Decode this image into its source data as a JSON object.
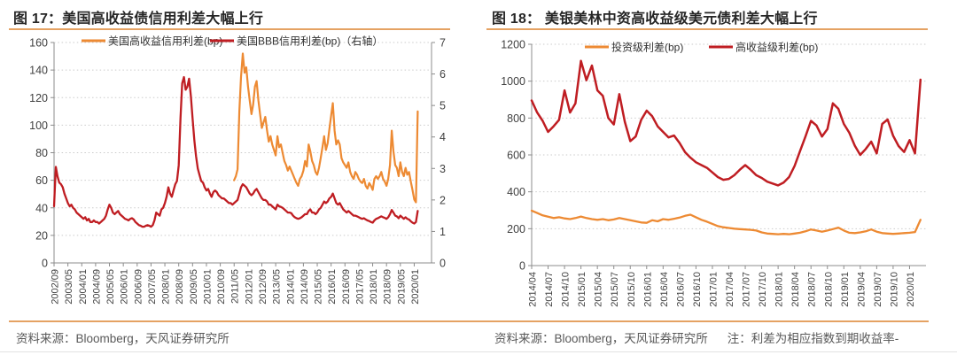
{
  "page": {
    "background": "#ffffff",
    "accent_rule_color": "#e5a263"
  },
  "figures": [
    {
      "title": "图 17：美国高收益债信用利差大幅上行",
      "source": "资料来源：Bloomberg，天风证券研究所",
      "note": ""
    },
    {
      "title": "图 18： 美银美林中资高收益级美元债利差大幅上行",
      "source": "资料来源：Bloomberg，天风证券研究所",
      "note": "注：利差为相应指数到期收益率-"
    }
  ],
  "chart_data": [
    {
      "type": "line",
      "title": "美国高收益债信用利差大幅上行",
      "legend_position": "top",
      "grid": "dotted-horizontal",
      "x_start": "2002/09",
      "x_tick_interval_months": 8,
      "x_total_months": 218,
      "x_tick_labels": [
        "2002/09",
        "2003/05",
        "2004/01",
        "2004/09",
        "2005/05",
        "2006/01",
        "2006/09",
        "2007/05",
        "2008/01",
        "2008/09",
        "2009/05",
        "2010/01",
        "2010/09",
        "2011/05",
        "2012/01",
        "2012/09",
        "2013/05",
        "2014/01",
        "2014/09",
        "2015/05",
        "2016/01",
        "2016/09",
        "2017/05",
        "2018/01",
        "2018/09",
        "2019/05",
        "2020/01"
      ],
      "y_axis_left": {
        "min": 0,
        "max": 160,
        "step": 20
      },
      "y_axis_right": {
        "min": 0,
        "max": 7,
        "step": 1
      },
      "series": [
        {
          "name": "美国高收益信用利差(bp)",
          "color": "#ed8a33",
          "axis": "left",
          "start_month_index": 104,
          "values": [
            60,
            63,
            68,
            110,
            135,
            152,
            138,
            142,
            128,
            118,
            108,
            115,
            128,
            132,
            118,
            108,
            98,
            102,
            106,
            96,
            88,
            92,
            86,
            82,
            78,
            92,
            84,
            86,
            80,
            74,
            71,
            67,
            70,
            67,
            64,
            61,
            58,
            56,
            61,
            63,
            67,
            74,
            70,
            86,
            81,
            74,
            71,
            66,
            64,
            69,
            76,
            84,
            92,
            82,
            87,
            97,
            107,
            116,
            96,
            86,
            89,
            86,
            76,
            73,
            71,
            69,
            73,
            66,
            63,
            61,
            66,
            64,
            61,
            59,
            58,
            61,
            56,
            54,
            58,
            56,
            53,
            61,
            63,
            61,
            63,
            66,
            61,
            59,
            56,
            61,
            71,
            96,
            81,
            71,
            69,
            63,
            73,
            66,
            63,
            69,
            64,
            66,
            59,
            53,
            46,
            44,
            110
          ]
        },
        {
          "name": "美国BBB信用利差(bp)（右轴）",
          "color": "#bf1d22",
          "axis": "right",
          "start_month_index": 0,
          "values": [
            1.8,
            3.05,
            2.75,
            2.55,
            2.5,
            2.4,
            2.2,
            2.05,
            1.9,
            1.8,
            1.85,
            1.75,
            1.7,
            1.6,
            1.55,
            1.5,
            1.45,
            1.4,
            1.45,
            1.35,
            1.4,
            1.3,
            1.3,
            1.35,
            1.3,
            1.3,
            1.25,
            1.3,
            1.35,
            1.4,
            1.5,
            1.7,
            1.85,
            1.75,
            1.6,
            1.55,
            1.6,
            1.65,
            1.55,
            1.5,
            1.45,
            1.4,
            1.38,
            1.35,
            1.4,
            1.42,
            1.38,
            1.3,
            1.25,
            1.2,
            1.18,
            1.15,
            1.15,
            1.18,
            1.2,
            1.18,
            1.15,
            1.2,
            1.35,
            1.6,
            1.55,
            1.5,
            1.7,
            1.75,
            1.9,
            2.1,
            2.4,
            2.2,
            2.1,
            2.3,
            2.5,
            2.6,
            3.1,
            4.6,
            5.7,
            5.9,
            5.5,
            5.6,
            5.85,
            5.3,
            4.6,
            3.9,
            3.4,
            3.0,
            2.8,
            2.6,
            2.55,
            2.4,
            2.3,
            2.35,
            2.2,
            2.1,
            2.25,
            2.3,
            2.25,
            2.15,
            2.1,
            2.05,
            2.05,
            2.0,
            1.95,
            1.9,
            1.9,
            1.85,
            1.9,
            1.95,
            2.0,
            2.2,
            2.4,
            2.5,
            2.45,
            2.4,
            2.3,
            2.2,
            2.15,
            2.2,
            2.3,
            2.35,
            2.25,
            2.15,
            2.05,
            2.0,
            2.0,
            1.95,
            1.85,
            1.85,
            1.8,
            1.75,
            1.7,
            1.85,
            1.8,
            1.78,
            1.75,
            1.7,
            1.65,
            1.6,
            1.6,
            1.58,
            1.5,
            1.45,
            1.42,
            1.4,
            1.42,
            1.45,
            1.5,
            1.55,
            1.55,
            1.65,
            1.7,
            1.6,
            1.6,
            1.55,
            1.6,
            1.7,
            1.75,
            1.85,
            1.95,
            1.9,
            1.95,
            2.05,
            2.1,
            2.2,
            2.05,
            1.9,
            1.85,
            1.9,
            1.8,
            1.7,
            1.65,
            1.6,
            1.65,
            1.6,
            1.55,
            1.5,
            1.5,
            1.48,
            1.45,
            1.42,
            1.4,
            1.42,
            1.38,
            1.35,
            1.33,
            1.3,
            1.28,
            1.35,
            1.4,
            1.42,
            1.45,
            1.48,
            1.45,
            1.43,
            1.4,
            1.45,
            1.55,
            1.68,
            1.6,
            1.5,
            1.48,
            1.42,
            1.5,
            1.45,
            1.4,
            1.45,
            1.4,
            1.38,
            1.32,
            1.28,
            1.25,
            1.3,
            1.65
          ]
        }
      ]
    },
    {
      "type": "line",
      "title": "美银美林中资高收益级美元债利差大幅上行",
      "legend_position": "top",
      "grid": "dotted-horizontal",
      "x_start": "2014/04",
      "x_tick_interval_months": 3,
      "x_total_months": 72,
      "x_tick_labels": [
        "2014/04",
        "2014/07",
        "2014/10",
        "2015/01",
        "2015/04",
        "2015/07",
        "2015/10",
        "2016/01",
        "2016/04",
        "2016/07",
        "2016/10",
        "2017/01",
        "2017/04",
        "2017/07",
        "2017/10",
        "2018/01",
        "2018/04",
        "2018/07",
        "2018/10",
        "2019/01",
        "2019/04",
        "2019/07",
        "2019/10",
        "2020/01"
      ],
      "y_axis_left": {
        "min": 0,
        "max": 1200,
        "step": 200
      },
      "series": [
        {
          "name": "投资级利差(bp)",
          "color": "#ed8a33",
          "axis": "left",
          "start_month_index": 0,
          "values": [
            298,
            285,
            272,
            265,
            258,
            262,
            256,
            252,
            258,
            266,
            258,
            252,
            248,
            252,
            246,
            250,
            258,
            252,
            246,
            240,
            234,
            232,
            246,
            240,
            252,
            248,
            254,
            260,
            270,
            276,
            262,
            248,
            238,
            226,
            214,
            208,
            204,
            200,
            198,
            196,
            194,
            190,
            180,
            174,
            172,
            170,
            172,
            170,
            174,
            178,
            186,
            196,
            190,
            184,
            190,
            198,
            206,
            190,
            178,
            176,
            180,
            186,
            196,
            184,
            176,
            174,
            172,
            174,
            176,
            178,
            182,
            248
          ]
        },
        {
          "name": "高收益级利差(bp)",
          "color": "#bf1d22",
          "axis": "left",
          "start_month_index": 0,
          "values": [
            895,
            830,
            785,
            725,
            755,
            790,
            950,
            830,
            880,
            1110,
            1005,
            1085,
            950,
            920,
            800,
            765,
            930,
            780,
            675,
            700,
            790,
            840,
            810,
            755,
            725,
            695,
            705,
            665,
            615,
            585,
            560,
            545,
            530,
            505,
            480,
            465,
            470,
            490,
            520,
            545,
            520,
            490,
            475,
            455,
            445,
            435,
            450,
            480,
            540,
            620,
            700,
            785,
            760,
            700,
            740,
            880,
            850,
            768,
            720,
            650,
            600,
            632,
            672,
            608,
            768,
            792,
            704,
            648,
            616,
            680,
            608,
            1008
          ]
        }
      ]
    }
  ]
}
